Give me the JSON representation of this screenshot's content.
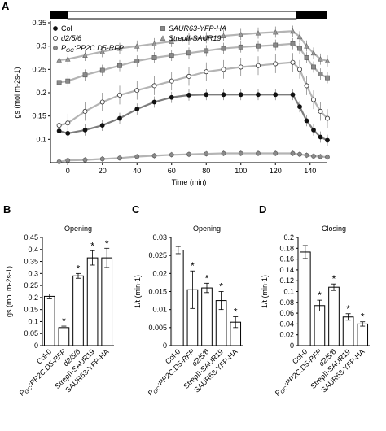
{
  "chart_data": [
    {
      "panel": "A",
      "type": "scatter",
      "xlabel": "Time (min)",
      "ylabel": "gs (mol m-2s-1)",
      "xlim": [
        -10,
        150
      ],
      "ylim": [
        0.05,
        0.35
      ],
      "xticks": [
        0,
        20,
        40,
        60,
        80,
        100,
        120,
        140
      ],
      "yticks": [
        0.1,
        0.15,
        0.2,
        0.25,
        0.3,
        0.35
      ],
      "light_bar": {
        "dark_until": 0,
        "light_until": 132
      },
      "legend": [
        {
          "text": "Col",
          "marker": "filled-circle"
        },
        {
          "text": "d2/5/6",
          "marker": "open-circle"
        },
        {
          "text": "PGC:PP2C.D5-RFP",
          "marker": "gray-circle",
          "sub": "GC",
          "pre": "P",
          "post": ":PP2C.D5-RFP"
        },
        {
          "text": "SAUR63-YFP-HA",
          "marker": "gray-square"
        },
        {
          "text": "StrepII-SAUR19",
          "marker": "gray-triangle"
        }
      ],
      "series": [
        {
          "name": "Col",
          "marker": "filled-circle",
          "x": [
            -5,
            0,
            10,
            20,
            30,
            40,
            50,
            60,
            70,
            80,
            90,
            100,
            110,
            120,
            130,
            134,
            138,
            142,
            146,
            150
          ],
          "y": [
            0.118,
            0.113,
            0.12,
            0.13,
            0.145,
            0.165,
            0.18,
            0.19,
            0.195,
            0.196,
            0.196,
            0.196,
            0.196,
            0.196,
            0.196,
            0.17,
            0.14,
            0.12,
            0.105,
            0.098
          ],
          "err": 0.012
        },
        {
          "name": "d2/5/6",
          "marker": "open-circle",
          "x": [
            -5,
            0,
            10,
            20,
            30,
            40,
            50,
            60,
            70,
            80,
            90,
            100,
            110,
            120,
            130,
            134,
            138,
            142,
            146,
            150
          ],
          "y": [
            0.13,
            0.135,
            0.16,
            0.18,
            0.195,
            0.205,
            0.215,
            0.225,
            0.235,
            0.245,
            0.25,
            0.255,
            0.258,
            0.262,
            0.265,
            0.25,
            0.215,
            0.185,
            0.16,
            0.145
          ],
          "err": 0.02
        },
        {
          "name": "PGC:PP2C.D5-RFP",
          "marker": "gray-circle",
          "x": [
            -5,
            0,
            10,
            20,
            30,
            40,
            50,
            60,
            70,
            80,
            90,
            100,
            110,
            120,
            130,
            134,
            138,
            142,
            146,
            150
          ],
          "y": [
            0.052,
            0.055,
            0.056,
            0.058,
            0.06,
            0.063,
            0.065,
            0.067,
            0.068,
            0.069,
            0.07,
            0.07,
            0.07,
            0.07,
            0.07,
            0.068,
            0.066,
            0.064,
            0.063,
            0.062
          ],
          "err": 0.006
        },
        {
          "name": "SAUR63-YFP-HA",
          "marker": "gray-square",
          "x": [
            -5,
            0,
            10,
            20,
            30,
            40,
            50,
            60,
            70,
            80,
            90,
            100,
            110,
            120,
            130,
            134,
            138,
            142,
            146,
            150
          ],
          "y": [
            0.222,
            0.225,
            0.238,
            0.248,
            0.258,
            0.268,
            0.275,
            0.28,
            0.285,
            0.29,
            0.295,
            0.298,
            0.3,
            0.302,
            0.305,
            0.295,
            0.275,
            0.255,
            0.24,
            0.232
          ],
          "err": 0.012
        },
        {
          "name": "StrepII-SAUR19",
          "marker": "gray-triangle",
          "x": [
            -5,
            0,
            10,
            20,
            30,
            40,
            50,
            60,
            70,
            80,
            90,
            100,
            110,
            120,
            130,
            134,
            138,
            142,
            146,
            150
          ],
          "y": [
            0.27,
            0.272,
            0.28,
            0.288,
            0.295,
            0.3,
            0.305,
            0.31,
            0.315,
            0.318,
            0.322,
            0.325,
            0.328,
            0.33,
            0.332,
            0.32,
            0.3,
            0.285,
            0.272,
            0.268
          ],
          "err": 0.012
        }
      ]
    },
    {
      "panel": "B",
      "type": "bar",
      "title": "Opening",
      "ylabel": "gs (mol m-2s-1)",
      "ylim": [
        0,
        0.45
      ],
      "yticks": [
        0,
        0.05,
        0.1,
        0.15,
        0.2,
        0.25,
        0.3,
        0.35,
        0.4,
        0.45
      ],
      "categories": [
        "Col-0",
        "PGC:PP2C.D5-RFP",
        "d2/5/6",
        "StrepII-SAUR19",
        "SAUR63-YFP-HA"
      ],
      "values": [
        0.205,
        0.075,
        0.29,
        0.365,
        0.365
      ],
      "errors": [
        0.01,
        0.006,
        0.01,
        0.03,
        0.04
      ],
      "significant": [
        false,
        true,
        true,
        true,
        true
      ]
    },
    {
      "panel": "C",
      "type": "bar",
      "title": "Opening",
      "ylabel": "1/t (min-1)",
      "ylim": [
        0,
        0.03
      ],
      "yticks": [
        0,
        0.005,
        0.01,
        0.015,
        0.02,
        0.025,
        0.03
      ],
      "categories": [
        "Col-0",
        "PGC:PP2C.D5-RFP",
        "d2/5/6",
        "StrepII-SAUR19",
        "SAUR63-YFP-HA"
      ],
      "values": [
        0.0265,
        0.0155,
        0.016,
        0.0125,
        0.0065
      ],
      "errors": [
        0.001,
        0.0052,
        0.0013,
        0.0025,
        0.0015
      ],
      "significant": [
        false,
        true,
        true,
        true,
        true
      ]
    },
    {
      "panel": "D",
      "type": "bar",
      "title": "Closing",
      "ylabel": "1/t (min-1)",
      "ylim": [
        0,
        0.2
      ],
      "yticks": [
        0,
        0.02,
        0.04,
        0.06,
        0.08,
        0.1,
        0.12,
        0.14,
        0.16,
        0.18,
        0.2
      ],
      "categories": [
        "Col-0",
        "PGC:PP2C.D5-RFP",
        "d2/5/6",
        "StrepII-SAUR19",
        "SAUR63-YFP-HA"
      ],
      "values": [
        0.173,
        0.074,
        0.108,
        0.053,
        0.04
      ],
      "errors": [
        0.012,
        0.01,
        0.006,
        0.006,
        0.004
      ],
      "significant": [
        false,
        true,
        true,
        true,
        true
      ]
    }
  ]
}
